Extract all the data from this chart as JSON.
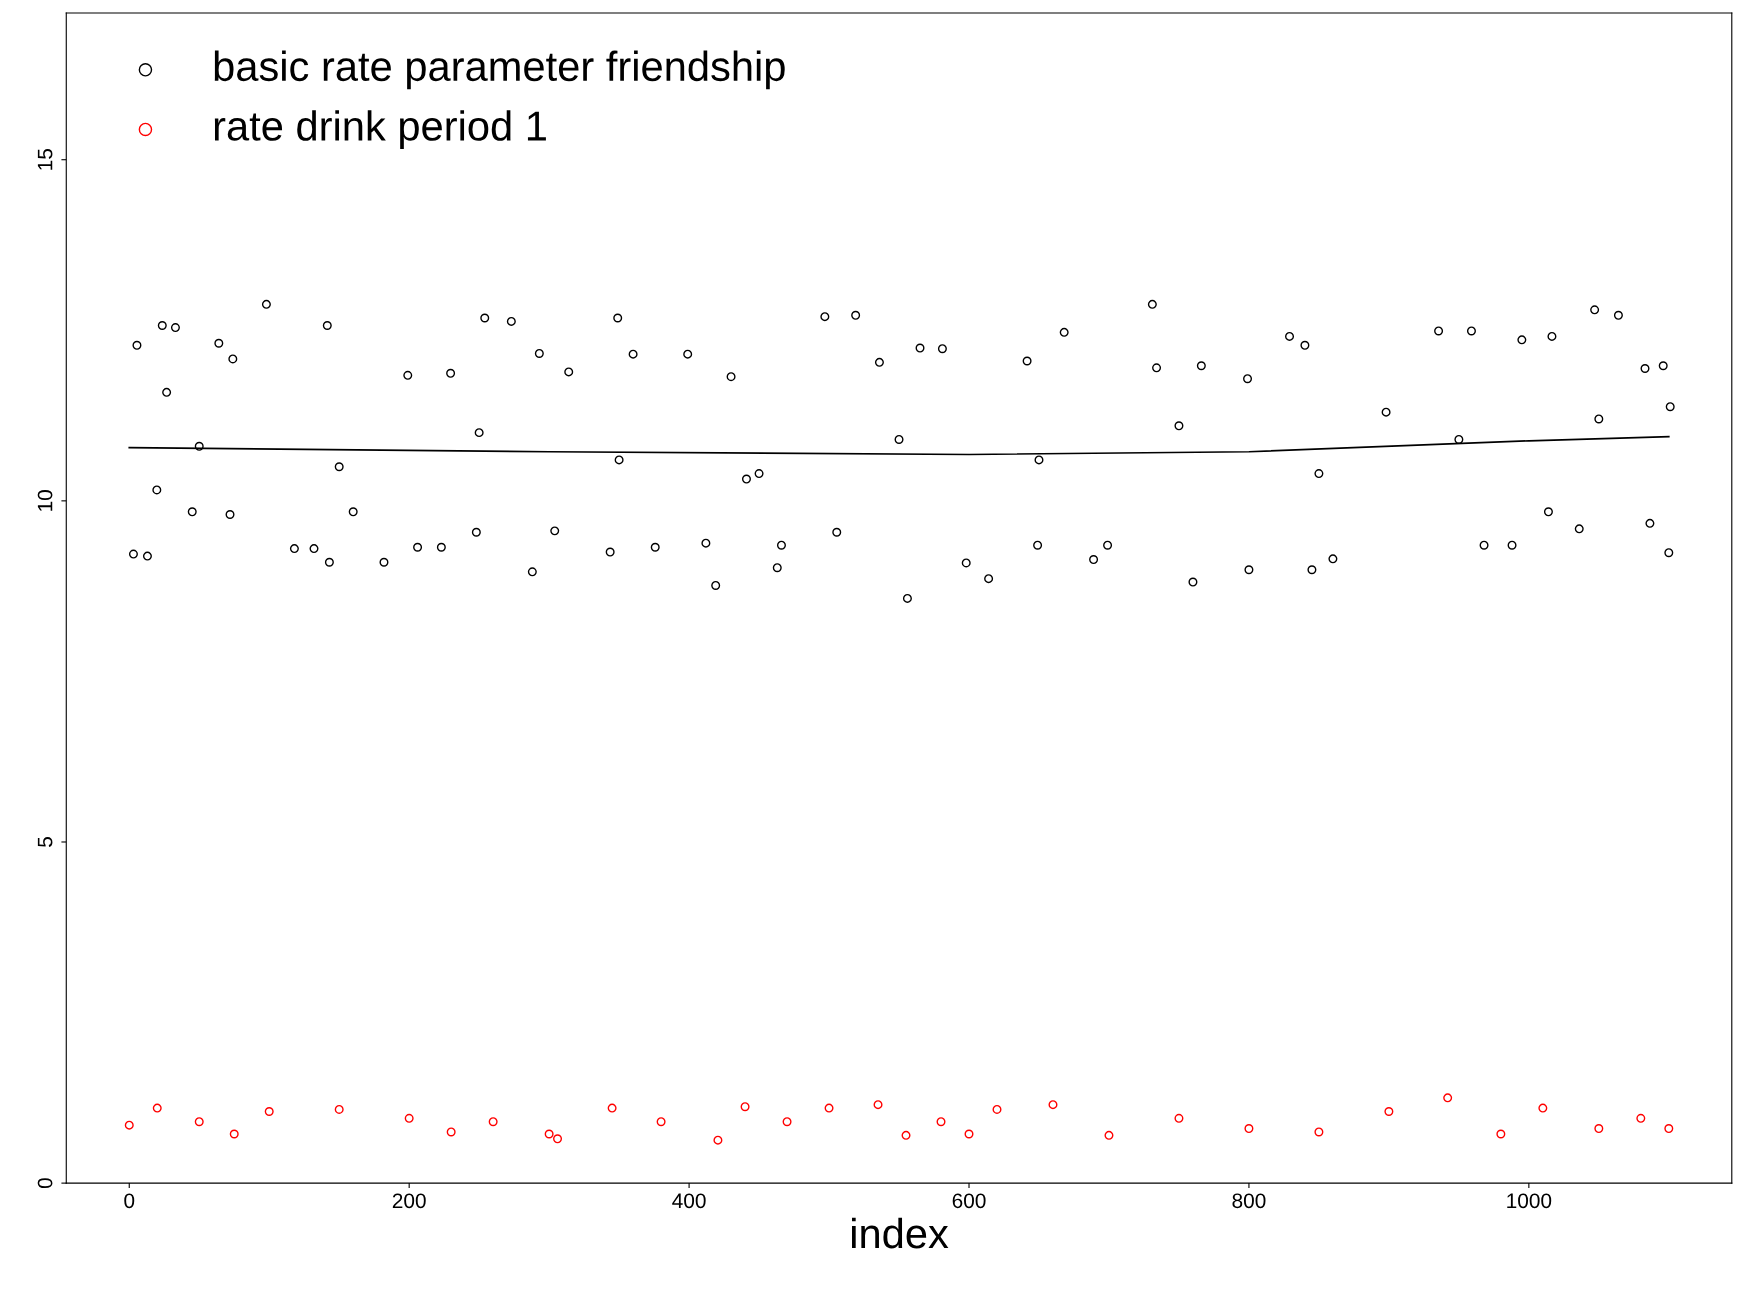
{
  "chart_data": {
    "type": "scatter",
    "xlabel": "index",
    "xlim": [
      -45,
      1145
    ],
    "ylim": [
      0,
      17.15
    ],
    "xticks": [
      0,
      200,
      400,
      600,
      800,
      1000
    ],
    "yticks": [
      0,
      5,
      10,
      15
    ],
    "grid": false,
    "legend": "top left",
    "marker": "circle",
    "series": [
      {
        "name": "basic rate parameter friendship",
        "color": "#000000",
        "x": [
          3,
          5.5,
          13,
          23.6,
          33,
          19.7,
          26.7,
          45,
          50,
          64,
          74,
          72,
          98,
          118,
          132,
          141.5,
          143,
          150,
          160,
          182,
          199,
          206,
          223,
          229.6,
          248,
          250,
          254,
          273,
          288,
          293,
          304,
          314,
          343.6,
          349,
          350,
          360,
          375.8,
          399,
          412,
          419,
          430,
          441,
          450,
          463,
          466,
          497,
          505.5,
          519,
          536,
          550,
          556,
          565,
          581,
          598,
          614,
          641.5,
          649,
          650,
          668,
          689,
          699,
          731,
          734,
          750,
          760,
          766,
          799,
          800,
          829,
          840,
          845,
          850,
          860,
          898,
          935.5,
          950,
          959,
          968,
          988,
          995,
          1014,
          1016.5,
          1036,
          1047,
          1050,
          1064,
          1083,
          1086.5,
          1096,
          1100,
          1101
        ],
        "values": [
          9.22,
          12.28,
          9.19,
          12.57,
          12.54,
          10.16,
          11.59,
          9.84,
          10.8,
          12.31,
          12.08,
          9.8,
          12.88,
          9.3,
          9.3,
          12.57,
          9.1,
          10.5,
          9.84,
          9.1,
          11.84,
          9.32,
          9.32,
          11.87,
          9.54,
          11.0,
          12.68,
          12.63,
          8.96,
          12.16,
          9.56,
          11.89,
          9.25,
          12.68,
          10.6,
          12.15,
          9.32,
          12.15,
          9.38,
          8.76,
          11.82,
          10.32,
          10.4,
          9.02,
          9.35,
          12.7,
          9.54,
          12.72,
          12.03,
          10.9,
          8.57,
          12.24,
          12.23,
          9.09,
          8.86,
          12.05,
          9.35,
          10.6,
          12.47,
          9.14,
          9.35,
          12.88,
          11.95,
          11.1,
          8.81,
          11.98,
          11.79,
          8.99,
          12.41,
          12.28,
          8.99,
          10.4,
          9.15,
          11.3,
          12.49,
          10.9,
          12.49,
          9.35,
          9.35,
          12.36,
          9.84,
          12.41,
          9.59,
          12.8,
          11.2,
          12.72,
          11.94,
          9.67,
          11.98,
          9.24,
          11.38
        ]
      },
      {
        "color": "#000000",
        "type": "line",
        "marker": "none",
        "x": [
          0,
          300,
          600,
          800,
          1000,
          1100
        ],
        "values": [
          10.78,
          10.72,
          10.68,
          10.72,
          10.88,
          10.94
        ]
      },
      {
        "name": "rate drink period 1",
        "color": "#ff0000",
        "x": [
          0,
          20,
          50,
          75,
          100,
          150,
          200,
          230,
          260,
          300,
          306,
          345,
          380,
          420.6,
          440,
          470,
          500,
          535,
          555,
          580,
          600,
          620,
          660,
          700,
          750,
          800,
          850,
          900,
          942,
          980,
          1010,
          1050,
          1080,
          1100
        ],
        "values": [
          0.85,
          1.1,
          0.9,
          0.72,
          1.05,
          1.08,
          0.95,
          0.75,
          0.9,
          0.72,
          0.65,
          1.1,
          0.9,
          0.63,
          1.12,
          0.9,
          1.1,
          1.15,
          0.7,
          0.9,
          0.72,
          1.08,
          1.15,
          0.7,
          0.95,
          0.8,
          0.75,
          1.05,
          1.25,
          0.72,
          1.1,
          0.8,
          0.95,
          0.8
        ]
      }
    ]
  }
}
